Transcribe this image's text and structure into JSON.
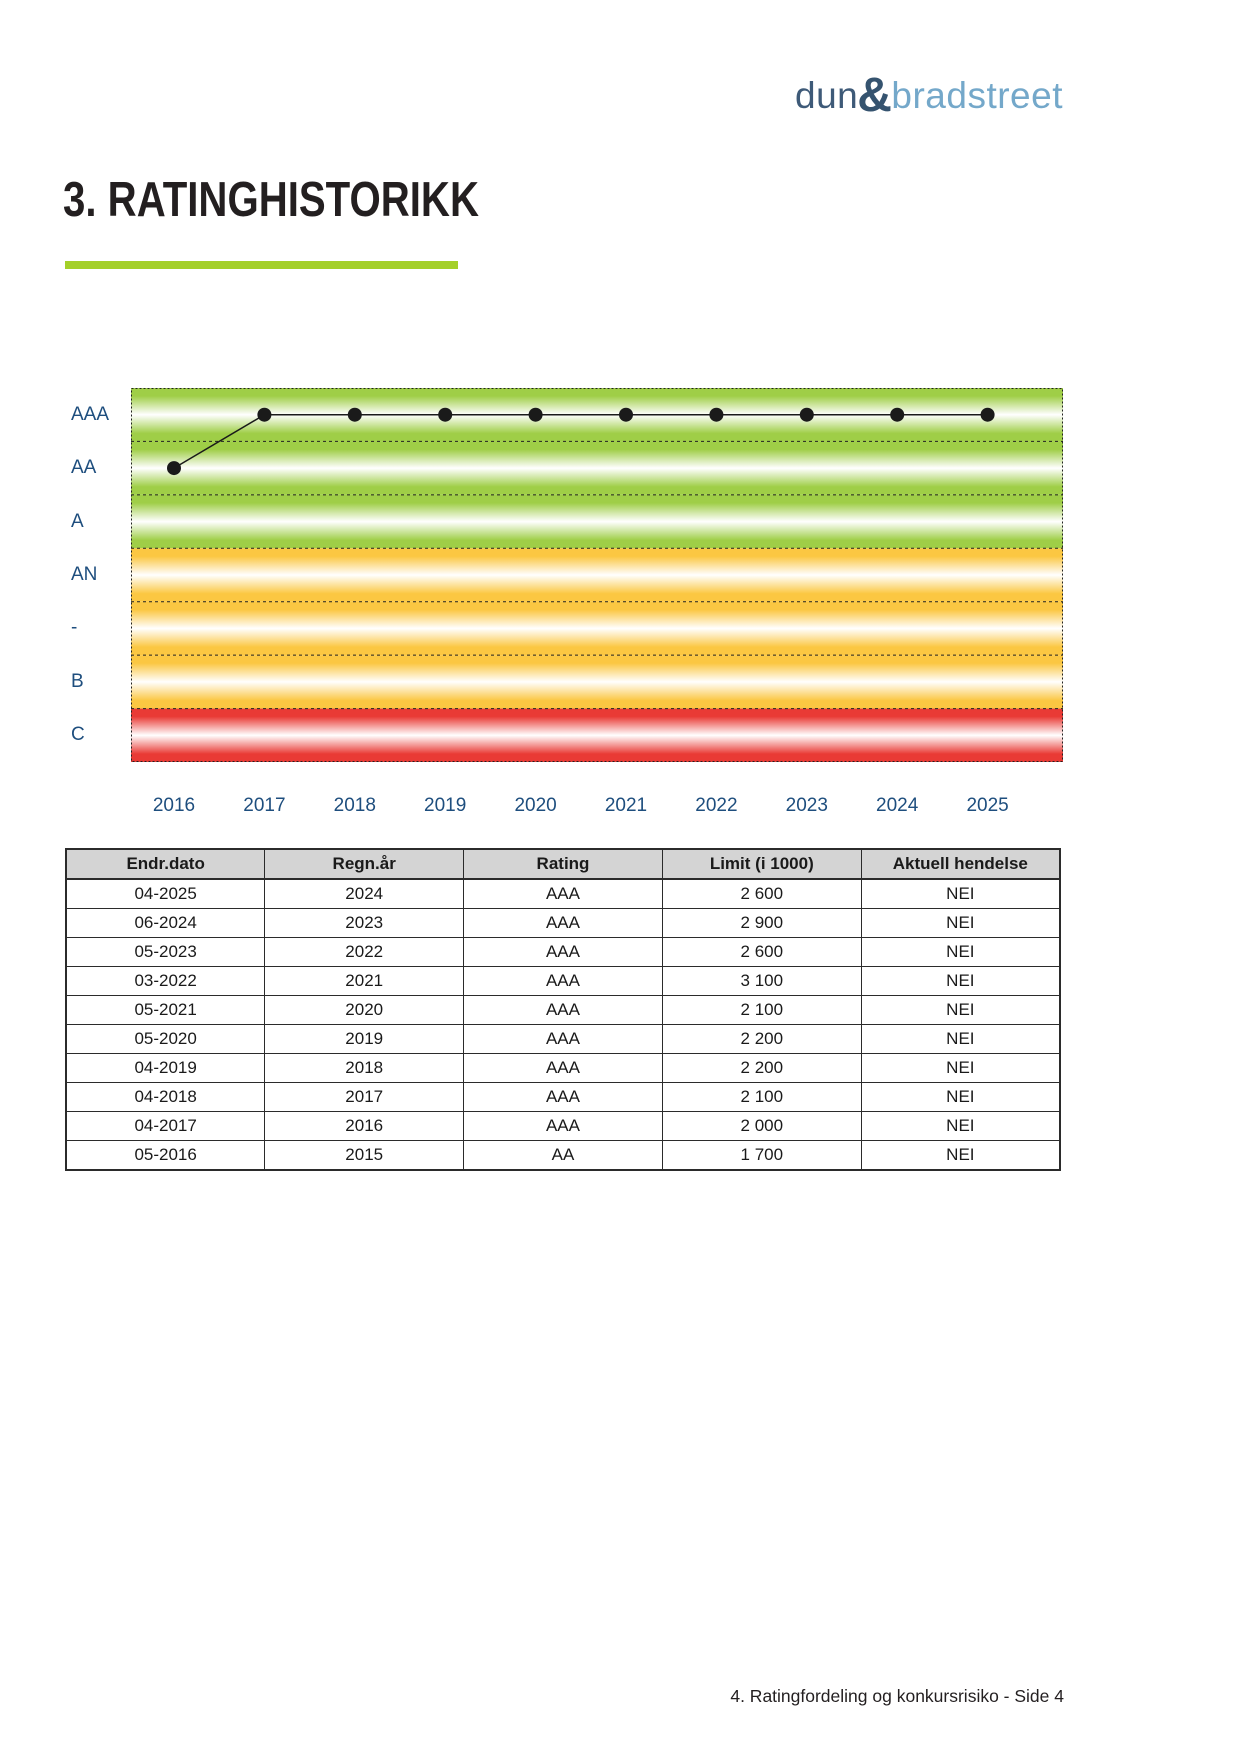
{
  "logo": {
    "dun": "dun",
    "amp": "&",
    "bradstreet": "bradstreet"
  },
  "page": {
    "title": "3. RATINGHISTORIKK",
    "footer": "4. Ratingfordeling og konkursrisiko - Side 4"
  },
  "colors": {
    "accent_bar_green": "#a4d029",
    "band_green": "#9fce47",
    "band_orange": "#fbc742",
    "band_red": "#e93a35",
    "axis_label_blue": "#1e4e7e",
    "line_black": "#1a1a1a",
    "logo_dark_blue": "#3e5a78",
    "logo_light_blue": "#74a8ca",
    "table_header_gray": "#d4d4d4"
  },
  "chart_data": {
    "type": "line",
    "title": "Ratinghistorikk",
    "xlabel": "",
    "ylabel": "",
    "categories": [
      "2016",
      "2017",
      "2018",
      "2019",
      "2020",
      "2021",
      "2022",
      "2023",
      "2024",
      "2025"
    ],
    "series": [
      {
        "name": "Rating",
        "values": [
          "AA",
          "AAA",
          "AAA",
          "AAA",
          "AAA",
          "AAA",
          "AAA",
          "AAA",
          "AAA",
          "AAA"
        ]
      }
    ],
    "y_bands_top_to_bottom": [
      {
        "label": "AAA",
        "color": "#9fce47"
      },
      {
        "label": "AA",
        "color": "#9fce47"
      },
      {
        "label": "A",
        "color": "#9fce47"
      },
      {
        "label": "AN",
        "color": "#fbc742"
      },
      {
        "label": "-",
        "color": "#fbc742"
      },
      {
        "label": "B",
        "color": "#fbc742"
      },
      {
        "label": "C",
        "color": "#e93a35"
      }
    ],
    "line_color": "#1a1a1a",
    "marker": "filled-circle",
    "grid": "dashed-horizontal-band-dividers",
    "legend": "none"
  },
  "table": {
    "headers": [
      "Endr.dato",
      "Regn.år",
      "Rating",
      "Limit (i 1000)",
      "Aktuell hendelse"
    ],
    "rows": [
      [
        "04-2025",
        "2024",
        "AAA",
        "2 600",
        "NEI"
      ],
      [
        "06-2024",
        "2023",
        "AAA",
        "2 900",
        "NEI"
      ],
      [
        "05-2023",
        "2022",
        "AAA",
        "2 600",
        "NEI"
      ],
      [
        "03-2022",
        "2021",
        "AAA",
        "3 100",
        "NEI"
      ],
      [
        "05-2021",
        "2020",
        "AAA",
        "2 100",
        "NEI"
      ],
      [
        "05-2020",
        "2019",
        "AAA",
        "2 200",
        "NEI"
      ],
      [
        "04-2019",
        "2018",
        "AAA",
        "2 200",
        "NEI"
      ],
      [
        "04-2018",
        "2017",
        "AAA",
        "2 100",
        "NEI"
      ],
      [
        "04-2017",
        "2016",
        "AAA",
        "2 000",
        "NEI"
      ],
      [
        "05-2016",
        "2015",
        "AA",
        "1 700",
        "NEI"
      ]
    ]
  }
}
